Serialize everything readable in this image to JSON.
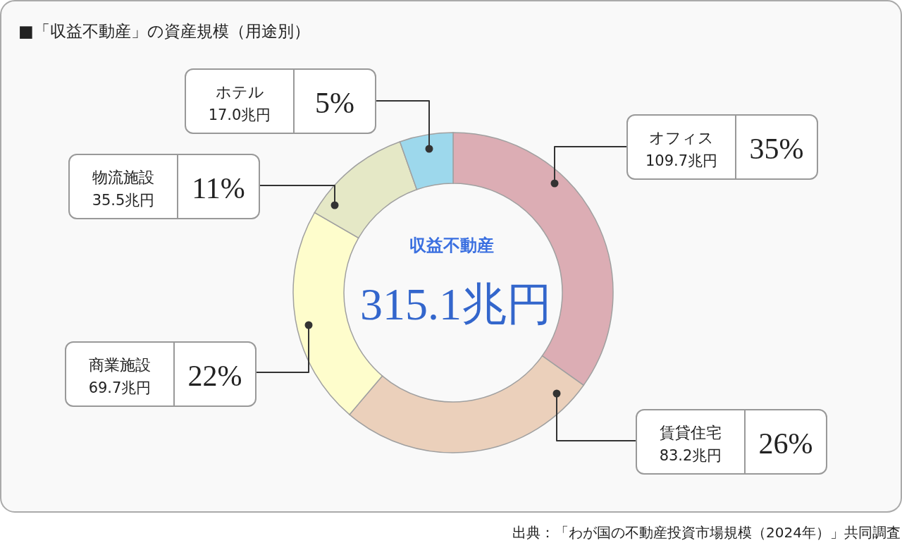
{
  "chart_data": {
    "type": "donut",
    "title": "■「収益不動産」の資産規模（用途別）",
    "categories": [
      "オフィス",
      "賃貸住宅",
      "商業施設",
      "物流施設",
      "ホテル"
    ],
    "values": [
      109.7,
      83.2,
      69.7,
      35.5,
      17.0
    ],
    "colors": [
      "#dcadb4",
      "#ebd0bb",
      "#fefdcc",
      "#e5e8c6",
      "#9dd8ec"
    ],
    "value_labels": [
      "109.7兆円",
      "83.2兆円",
      "69.7兆円",
      "35.5兆円",
      "17.0兆円"
    ],
    "annotations": [
      {
        "text": "35%",
        "x": "オフィス"
      },
      {
        "text": "26%",
        "x": "賃貸住宅"
      },
      {
        "text": "22%",
        "x": "商業施設"
      },
      {
        "text": "11%",
        "x": "物流施設"
      },
      {
        "text": "5%",
        "x": "ホテル"
      },
      "収益不動産",
      "315.1兆円",
      "出典：「わが国の不動産投資市場規模（2024年）」共同調査"
    ]
  }
}
